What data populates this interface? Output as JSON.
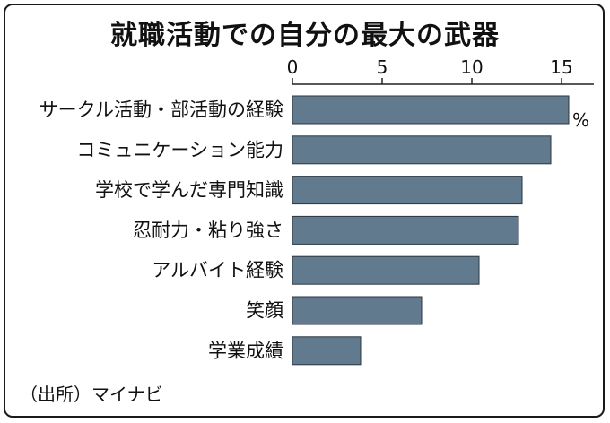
{
  "title": "就職活動での自分の最大の武器",
  "source": "（出所）マイナビ",
  "chart_data": {
    "type": "bar",
    "orientation": "horizontal",
    "title": "就職活動での自分の最大の武器",
    "unit": "%",
    "categories": [
      "サークル活動・部活動の経験",
      "コミュニケーション能力",
      "学校で学んだ専門知識",
      "忍耐力・粘り強さ",
      "アルバイト経験",
      "笑顔",
      "学業成績"
    ],
    "values": [
      15.4,
      14.4,
      12.8,
      12.6,
      10.4,
      7.2,
      3.8
    ],
    "xlim": [
      0,
      17
    ],
    "xticks": [
      0,
      5,
      10,
      15
    ],
    "xtick_labels": [
      "0",
      "5",
      "10",
      "15"
    ],
    "axis_position": "top",
    "grid": false,
    "bar_color": "#627a8d"
  }
}
